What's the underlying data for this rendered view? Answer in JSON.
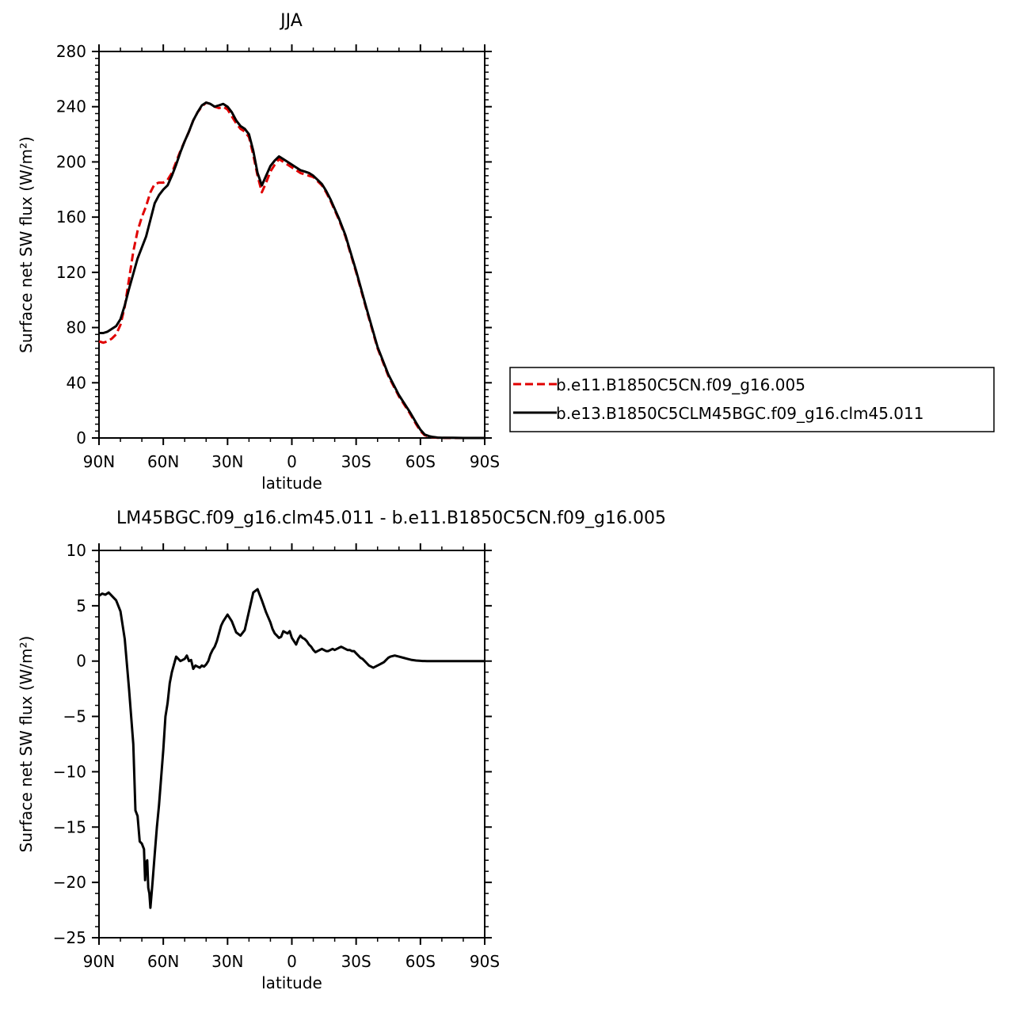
{
  "chart_data": [
    {
      "type": "line",
      "title": "JJA",
      "xlabel": "latitude",
      "ylabel": "Surface net SW flux (W/m²)",
      "xlim": [
        90,
        -90
      ],
      "ylim": [
        0,
        280
      ],
      "xticks": [
        90,
        60,
        30,
        0,
        -30,
        -60,
        -90
      ],
      "xtick_labels": [
        "90N",
        "60N",
        "30N",
        "0",
        "30S",
        "60S",
        "90S"
      ],
      "yticks": [
        0,
        40,
        80,
        120,
        160,
        200,
        240,
        280
      ],
      "ytick_labels": [
        "0",
        "40",
        "80",
        "120",
        "160",
        "200",
        "240",
        "280"
      ],
      "legend": "right",
      "series": [
        {
          "name": "b.e11.B1850C5CN.f09_g16.005",
          "color": "#e00000",
          "dash": "dashed",
          "x": [
            90,
            88,
            86,
            84,
            82,
            80,
            78,
            76,
            74,
            72,
            70,
            68,
            66,
            64,
            62,
            60,
            58,
            56,
            54,
            52,
            50,
            48,
            46,
            44,
            42,
            40,
            38,
            36,
            34,
            32,
            30,
            28,
            26,
            24,
            22,
            20,
            18,
            16,
            14,
            12,
            10,
            8,
            6,
            4,
            2,
            0,
            -2,
            -4,
            -6,
            -8,
            -10,
            -12,
            -14,
            -16,
            -18,
            -20,
            -22,
            -25,
            -30,
            -35,
            -40,
            -45,
            -50,
            -55,
            -58,
            -60,
            -62,
            -64,
            -66,
            -68,
            -70,
            -75,
            -80,
            -85,
            -90
          ],
          "y": [
            70,
            69,
            70,
            72,
            75,
            82,
            95,
            115,
            135,
            150,
            160,
            168,
            178,
            184,
            185,
            185,
            187,
            192,
            200,
            208,
            215,
            222,
            230,
            236,
            240,
            243,
            242,
            240,
            239,
            240,
            238,
            233,
            228,
            224,
            222,
            218,
            205,
            190,
            178,
            185,
            193,
            198,
            202,
            200,
            198,
            196,
            194,
            192,
            191,
            190,
            189,
            186,
            183,
            178,
            172,
            165,
            158,
            146,
            120,
            92,
            65,
            45,
            30,
            18,
            10,
            5,
            2,
            1,
            0.5,
            0.2,
            0.1,
            0,
            0,
            0,
            0
          ]
        },
        {
          "name": "b.e13.B1850C5CLM45BGC.f09_g16.clm45.011",
          "color": "#000000",
          "dash": "solid",
          "x": [
            90,
            88,
            86,
            84,
            82,
            80,
            78,
            76,
            74,
            72,
            70,
            68,
            66,
            64,
            62,
            60,
            58,
            56,
            54,
            52,
            50,
            48,
            46,
            44,
            42,
            40,
            38,
            36,
            34,
            32,
            30,
            28,
            26,
            24,
            22,
            20,
            18,
            16,
            14,
            12,
            10,
            8,
            6,
            4,
            2,
            0,
            -2,
            -4,
            -6,
            -8,
            -10,
            -12,
            -14,
            -16,
            -18,
            -20,
            -22,
            -25,
            -30,
            -35,
            -40,
            -45,
            -50,
            -55,
            -58,
            -60,
            -62,
            -64,
            -66,
            -68,
            -70,
            -75,
            -80,
            -85,
            -90
          ],
          "y": [
            76,
            76,
            77,
            79,
            81,
            86,
            96,
            108,
            119,
            130,
            138,
            146,
            158,
            170,
            176,
            180,
            183,
            190,
            198,
            207,
            215,
            222,
            230,
            236,
            241,
            243,
            242,
            240,
            241,
            242,
            240,
            236,
            230,
            226,
            224,
            220,
            208,
            192,
            183,
            190,
            197,
            201,
            204,
            202,
            200,
            198,
            196,
            194,
            193,
            192,
            190,
            187,
            184,
            179,
            173,
            166,
            159,
            147,
            121,
            93,
            66,
            46,
            31,
            19,
            11,
            6,
            2.5,
            1.3,
            0.7,
            0.3,
            0.2,
            0.1,
            0,
            0,
            0
          ]
        }
      ]
    },
    {
      "type": "line",
      "title": "LM45BGC.f09_g16.clm45.011 - b.e11.B1850C5CN.f09_g16.005",
      "xlabel": "latitude",
      "ylabel": "Surface net SW flux (W/m²)",
      "xlim": [
        90,
        -90
      ],
      "ylim": [
        -25,
        10
      ],
      "xticks": [
        90,
        60,
        30,
        0,
        -30,
        -60,
        -90
      ],
      "xtick_labels": [
        "90N",
        "60N",
        "30N",
        "0",
        "30S",
        "60S",
        "90S"
      ],
      "yticks": [
        -25,
        -20,
        -15,
        -10,
        -5,
        0,
        5,
        10
      ],
      "ytick_labels": [
        "−25",
        "−20",
        "−15",
        "−10",
        "−5",
        "0",
        "5",
        "10"
      ],
      "series": [
        {
          "color": "#000000",
          "dash": "solid",
          "x": [
            90,
            88.5,
            87,
            85.5,
            84,
            82,
            80,
            78,
            76,
            74,
            73,
            72,
            71,
            70,
            69,
            68.5,
            68,
            67.5,
            67,
            66.5,
            66,
            65,
            64,
            63,
            62,
            61,
            60,
            59,
            58,
            57,
            56,
            54,
            52,
            50,
            49,
            48,
            47,
            46,
            45,
            44,
            43,
            42,
            41,
            40,
            39,
            38,
            37,
            36,
            35,
            34,
            33,
            32,
            30,
            28,
            26,
            24,
            22,
            20,
            18,
            16,
            14,
            12,
            10,
            9,
            8,
            7,
            6,
            5,
            4,
            3,
            2,
            1,
            0,
            -1,
            -2,
            -3,
            -4,
            -5,
            -6,
            -7,
            -8,
            -9,
            -10,
            -11,
            -12,
            -13,
            -14,
            -15,
            -16,
            -17,
            -18,
            -19,
            -20,
            -21,
            -22,
            -23,
            -24,
            -25,
            -26,
            -27,
            -28,
            -29,
            -30,
            -31,
            -32,
            -33,
            -34,
            -35,
            -36,
            -37,
            -38,
            -39,
            -40,
            -41,
            -42,
            -43,
            -44,
            -45,
            -46,
            -48,
            -50,
            -52,
            -54,
            -56,
            -58,
            -60,
            -61,
            -62,
            -63,
            -64,
            -66,
            -68,
            -70,
            -75,
            -80,
            -85,
            -90
          ],
          "y": [
            5.9,
            6.1,
            6.0,
            6.2,
            5.9,
            5.5,
            4.5,
            2.0,
            -2.5,
            -7.5,
            -13.5,
            -14.0,
            -16.3,
            -16.5,
            -17.0,
            -19.8,
            -18.2,
            -18.0,
            -20.5,
            -21.0,
            -22.3,
            -20.0,
            -17.5,
            -15.0,
            -13.0,
            -10.5,
            -8.0,
            -5.0,
            -3.8,
            -2.0,
            -1.0,
            0.4,
            0.0,
            0.2,
            0.5,
            0.0,
            0.1,
            -0.7,
            -0.4,
            -0.5,
            -0.6,
            -0.4,
            -0.5,
            -0.3,
            0.0,
            0.6,
            1.0,
            1.3,
            1.8,
            2.5,
            3.2,
            3.6,
            4.2,
            3.6,
            2.6,
            2.3,
            2.8,
            4.5,
            6.2,
            6.5,
            5.5,
            4.4,
            3.5,
            2.9,
            2.5,
            2.3,
            2.1,
            2.2,
            2.7,
            2.6,
            2.5,
            2.7,
            2.1,
            1.8,
            1.5,
            2.0,
            2.3,
            2.1,
            2.0,
            1.8,
            1.5,
            1.3,
            1.0,
            0.8,
            0.9,
            1.0,
            1.1,
            1.0,
            0.9,
            0.9,
            1.0,
            1.1,
            1.0,
            1.1,
            1.2,
            1.3,
            1.2,
            1.1,
            1.0,
            1.0,
            0.9,
            0.9,
            0.7,
            0.5,
            0.3,
            0.2,
            0.0,
            -0.2,
            -0.4,
            -0.5,
            -0.6,
            -0.5,
            -0.4,
            -0.3,
            -0.2,
            -0.1,
            0.1,
            0.3,
            0.4,
            0.5,
            0.4,
            0.3,
            0.2,
            0.1,
            0.05,
            0.02,
            0.01,
            0.01,
            0.0,
            0.0,
            0.0,
            0.0,
            0.0,
            0.0,
            0.0,
            0.0,
            0.0
          ]
        }
      ]
    }
  ]
}
